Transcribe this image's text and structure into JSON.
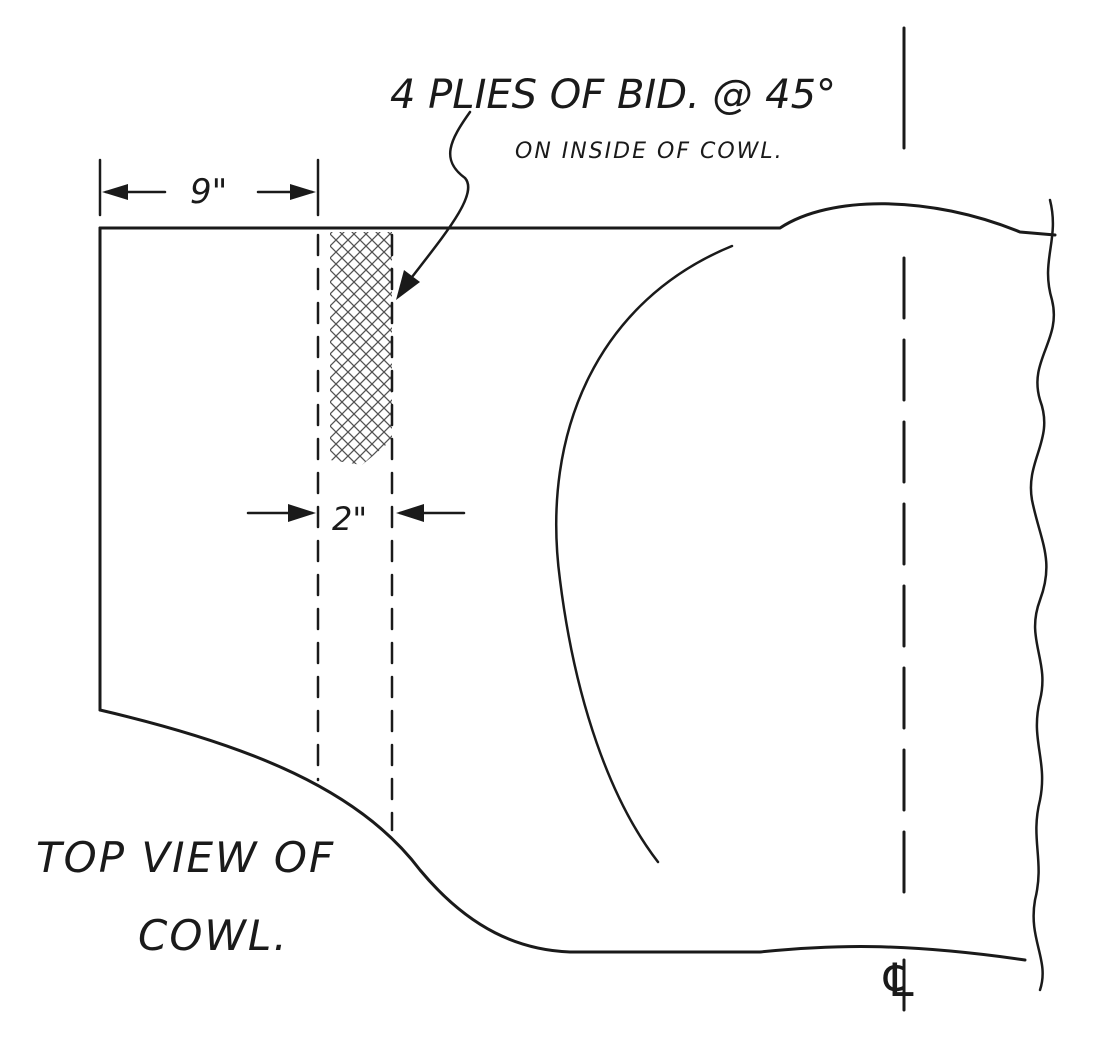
{
  "annotation_main": "4 PLIES OF BID. @ 45°",
  "annotation_sub": "ON INSIDE OF COWL.",
  "dim_9": "9\"",
  "dim_2": "2\"",
  "title_line1": "TOP VIEW OF",
  "title_line2": "COWL.",
  "centerline_symbol": "℄"
}
